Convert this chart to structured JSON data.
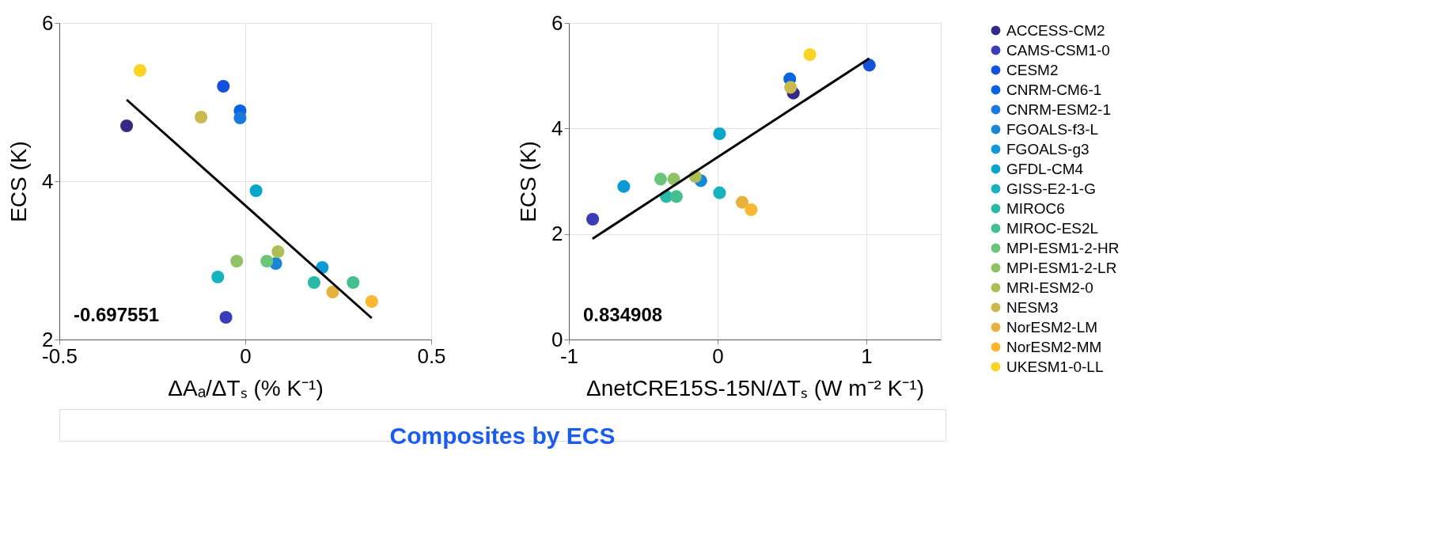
{
  "chart_data": [
    {
      "type": "scatter",
      "xlabel": "ΔAₐ/ΔTₛ (% K⁻¹)",
      "ylabel": "ECS (K)",
      "xlim": [
        -0.5,
        0.5
      ],
      "xticks": [
        -0.5,
        0,
        0.5
      ],
      "ylim": [
        2,
        6
      ],
      "yticks": [
        2,
        4,
        6
      ],
      "grid": true,
      "marker": "circle",
      "annotations": [
        "-0.697551",
        "Composites by ECS"
      ],
      "series": [
        {
          "color": "#352a87",
          "x": [
            -0.319
          ],
          "values": [
            4.7
          ]
        },
        {
          "color": "#3b3db8",
          "x": [
            -0.052
          ],
          "values": [
            2.28
          ]
        },
        {
          "color": "#1552dc",
          "x": [
            -0.059
          ],
          "values": [
            5.2
          ]
        },
        {
          "color": "#0a63e0",
          "x": [
            -0.014
          ],
          "values": [
            4.89
          ]
        },
        {
          "color": "#1a78de",
          "x": [
            -0.014
          ],
          "values": [
            4.8
          ]
        },
        {
          "color": "#1987d7",
          "x": [
            0.082
          ],
          "values": [
            2.96
          ]
        },
        {
          "color": "#0d9ad8",
          "x": [
            0.207
          ],
          "values": [
            2.91
          ]
        },
        {
          "color": "#06a7c8",
          "x": [
            0.029
          ],
          "values": [
            3.88
          ]
        },
        {
          "color": "#15b2c0",
          "x": [
            -0.074
          ],
          "values": [
            2.79
          ]
        },
        {
          "color": "#2ab9a6",
          "x": [
            0.185
          ],
          "values": [
            2.72
          ]
        },
        {
          "color": "#44bf90",
          "x": [
            0.29
          ],
          "values": [
            2.72
          ]
        },
        {
          "color": "#6ac47a",
          "x": [
            0.058
          ],
          "values": [
            2.99
          ]
        },
        {
          "color": "#8dc266",
          "x": [
            -0.023
          ],
          "values": [
            2.99
          ]
        },
        {
          "color": "#acbf55",
          "x": [
            0.088
          ],
          "values": [
            3.11
          ]
        },
        {
          "color": "#c9b94f",
          "x": [
            -0.119
          ],
          "values": [
            4.81
          ]
        },
        {
          "color": "#e6b23e",
          "x": [
            0.235
          ],
          "values": [
            2.6
          ]
        },
        {
          "color": "#fbb632",
          "x": [
            0.34
          ],
          "values": [
            2.48
          ]
        },
        {
          "color": "#fbd325",
          "x": [
            -0.283
          ],
          "values": [
            5.4
          ]
        },
        {
          "type": "line",
          "marker": "none",
          "color": "#000000",
          "x": [
            -0.319,
            0.34
          ],
          "values": [
            5.03,
            2.27
          ]
        }
      ]
    },
    {
      "type": "scatter",
      "xlabel": "ΔnetCRE15S-15N/ΔTₛ (W m⁻² K⁻¹)",
      "ylabel": "ECS (K)",
      "xlim": [
        -1,
        1.5
      ],
      "xticks": [
        -1,
        0,
        1
      ],
      "ylim": [
        0,
        6
      ],
      "yticks": [
        0,
        2,
        4,
        6
      ],
      "grid": true,
      "legend": "right",
      "marker": "circle",
      "annotations": [
        "0.834908"
      ],
      "series": [
        {
          "name": "ACCESS-CM2",
          "color": "#352a87",
          "x": [
            0.509
          ],
          "values": [
            4.67
          ]
        },
        {
          "name": "CAMS-CSM1-0",
          "color": "#3b3db8",
          "x": [
            -0.84
          ],
          "values": [
            2.28
          ]
        },
        {
          "name": "CESM2",
          "color": "#1552dc",
          "x": [
            1.02
          ],
          "values": [
            5.2
          ]
        },
        {
          "name": "CNRM-CM6-1",
          "color": "#0a63e0",
          "x": [
            0.485
          ],
          "values": [
            4.94
          ]
        },
        {
          "name": "CNRM-ESM2-1",
          "color": "#1a78de",
          "x": [
            null
          ],
          "values": [
            null
          ]
        },
        {
          "name": "FGOALS-f3-L",
          "color": "#1987d7",
          "x": [
            -0.113
          ],
          "values": [
            3.01
          ]
        },
        {
          "name": "FGOALS-g3",
          "color": "#0d9ad8",
          "x": [
            -0.631
          ],
          "values": [
            2.9
          ]
        },
        {
          "name": "GFDL-CM4",
          "color": "#06a7c8",
          "x": [
            0.013
          ],
          "values": [
            3.9
          ]
        },
        {
          "name": "GISS-E2-1-G",
          "color": "#15b2c0",
          "x": [
            0.013
          ],
          "values": [
            2.78
          ]
        },
        {
          "name": "MIROC6",
          "color": "#2ab9a6",
          "x": [
            -0.345
          ],
          "values": [
            2.71
          ]
        },
        {
          "name": "MIROC-ES2L",
          "color": "#44bf90",
          "x": [
            -0.277
          ],
          "values": [
            2.71
          ]
        },
        {
          "name": "MPI-ESM1-2-HR",
          "color": "#6ac47a",
          "x": [
            -0.383
          ],
          "values": [
            3.04
          ]
        },
        {
          "name": "MPI-ESM1-2-LR",
          "color": "#8dc266",
          "x": [
            -0.295
          ],
          "values": [
            3.04
          ]
        },
        {
          "name": "MRI-ESM2-0",
          "color": "#acbf55",
          "x": [
            -0.15
          ],
          "values": [
            3.09
          ]
        },
        {
          "name": "NESM3",
          "color": "#c9b94f",
          "x": [
            0.49
          ],
          "values": [
            4.78
          ]
        },
        {
          "name": "NorESM2-LM",
          "color": "#e6b23e",
          "x": [
            0.165
          ],
          "values": [
            2.6
          ]
        },
        {
          "name": "NorESM2-MM",
          "color": "#fbb632",
          "x": [
            0.225
          ],
          "values": [
            2.46
          ]
        },
        {
          "name": "UKESM1-0-LL",
          "color": "#fbd325",
          "x": [
            0.62
          ],
          "values": [
            5.4
          ]
        },
        {
          "type": "line",
          "marker": "none",
          "color": "#000000",
          "x": [
            -0.841,
            1.02
          ],
          "values": [
            1.91,
            5.33
          ]
        }
      ]
    }
  ]
}
